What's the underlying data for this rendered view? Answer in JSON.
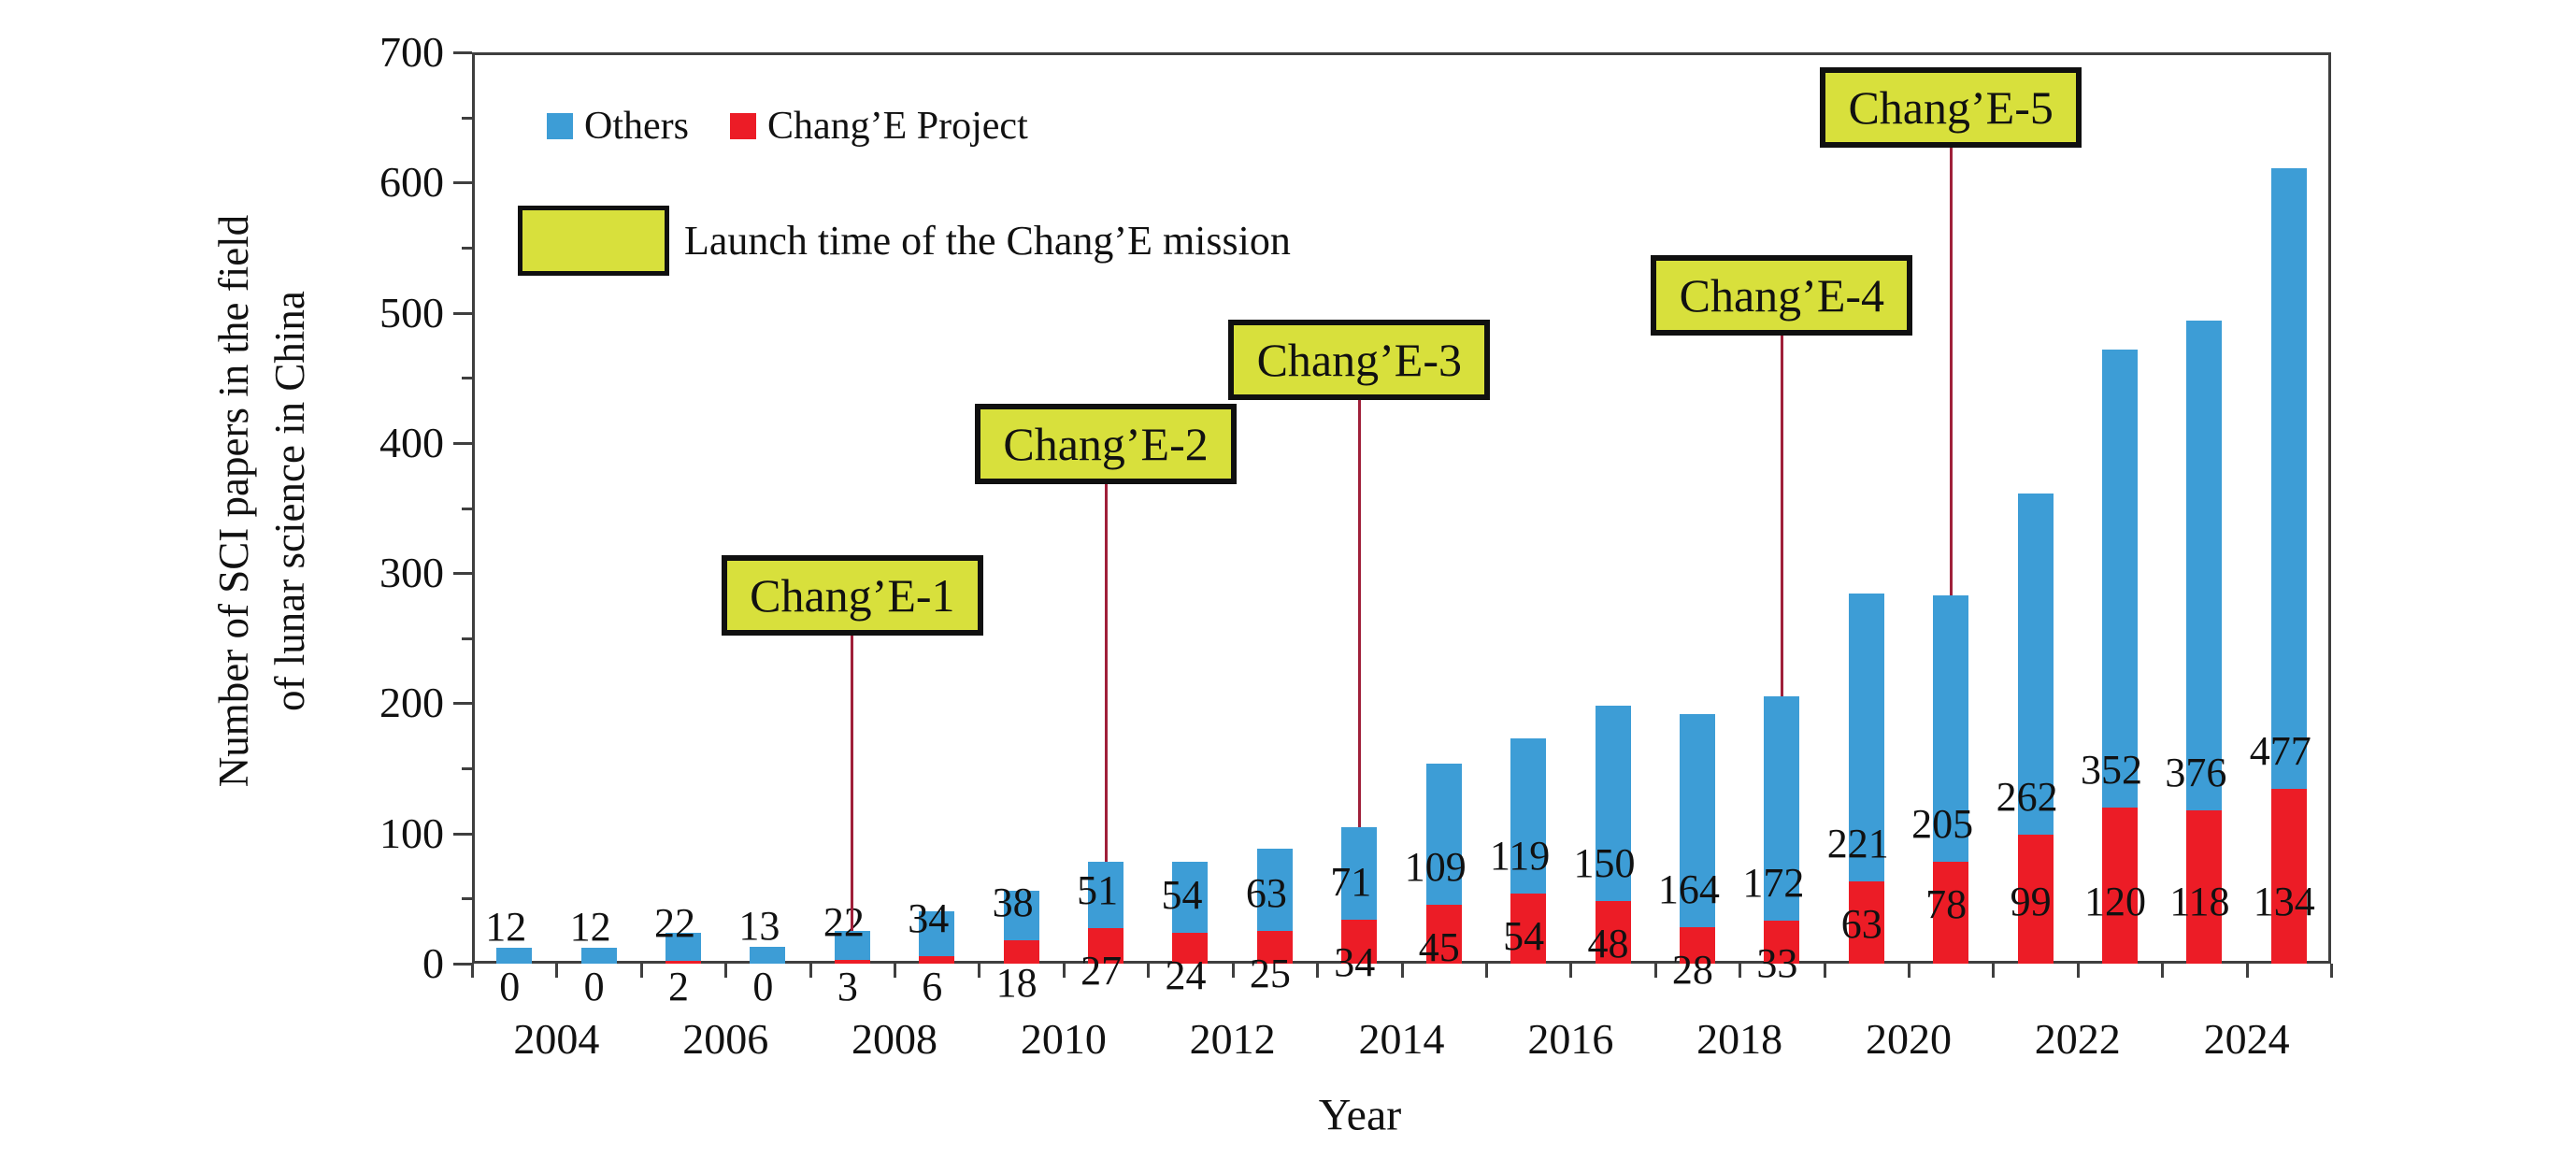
{
  "chart_data": {
    "type": "bar",
    "stacked": true,
    "title": "",
    "xlabel": "Year",
    "ylabel_lines": [
      "Number of SCI papers in the field",
      "of lunar science in China"
    ],
    "ylim": [
      0,
      700
    ],
    "ytick_step": 100,
    "ytick_labels": [
      "0",
      "100",
      "200",
      "300",
      "400",
      "500",
      "600",
      "700"
    ],
    "grid": false,
    "legend_position": "top-left-inside",
    "years": [
      2003,
      2004,
      2005,
      2006,
      2007,
      2008,
      2009,
      2010,
      2011,
      2012,
      2013,
      2014,
      2015,
      2016,
      2017,
      2018,
      2019,
      2020,
      2021,
      2022,
      2023,
      2024
    ],
    "xtick_labels": [
      "2004",
      "2006",
      "2008",
      "2010",
      "2012",
      "2014",
      "2016",
      "2018",
      "2020",
      "2022",
      "2024"
    ],
    "series": [
      {
        "name": "Others",
        "color": "#3D9DD6",
        "values": [
          12,
          12,
          22,
          13,
          22,
          34,
          38,
          51,
          54,
          63,
          71,
          109,
          119,
          150,
          164,
          172,
          221,
          205,
          262,
          352,
          376,
          477
        ]
      },
      {
        "name": "Chang’E Project",
        "color": "#EC1C26",
        "values": [
          0,
          0,
          2,
          0,
          3,
          6,
          18,
          27,
          24,
          25,
          34,
          45,
          54,
          48,
          28,
          33,
          63,
          78,
          99,
          120,
          118,
          134
        ]
      }
    ],
    "missions": [
      {
        "label": "Chang’E-1",
        "year": 2007,
        "box_top": 594
      },
      {
        "label": "Chang’E-2",
        "year": 2010,
        "box_top": 432
      },
      {
        "label": "Chang’E-3",
        "year": 2013,
        "box_top": 342
      },
      {
        "label": "Chang’E-4",
        "year": 2018,
        "box_top": 273
      },
      {
        "label": "Chang’E-5",
        "year": 2020,
        "box_top": 72
      }
    ],
    "mission_legend_label": "Launch time of the Chang’E mission",
    "mission_box_color": "#D8E03C",
    "mission_line_color": "#A0203A",
    "axis_color": "#3f3f3f"
  }
}
